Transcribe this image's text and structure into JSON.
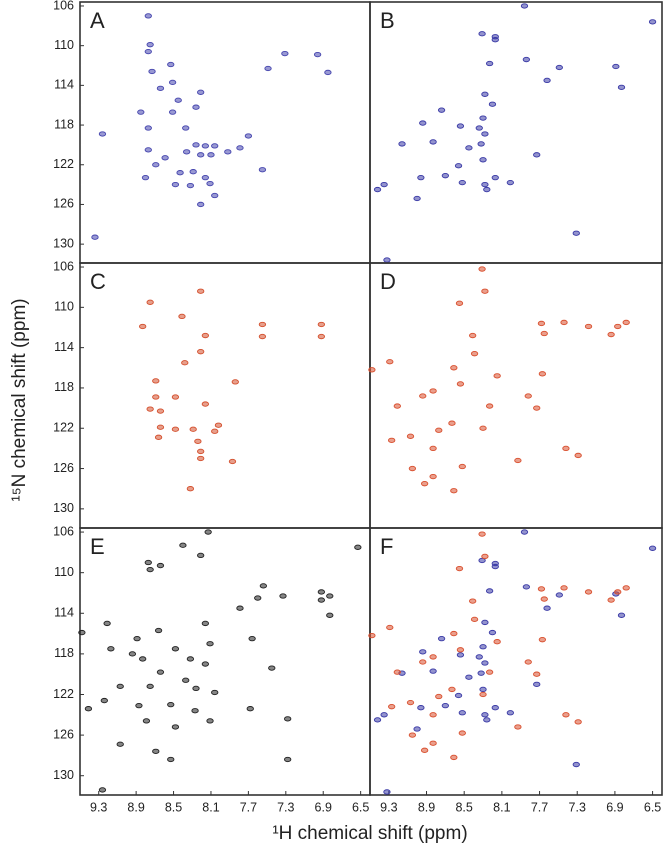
{
  "chart_data": {
    "type": "scatter",
    "xlabel": "¹H chemical shift (ppm)",
    "ylabel": "¹⁵N chemical shift (ppm)",
    "xlim": [
      9.5,
      6.4
    ],
    "ylim": [
      105.6,
      131.9
    ],
    "xticks": [
      9.3,
      8.9,
      8.5,
      8.1,
      7.7,
      7.3,
      6.9,
      6.5
    ],
    "yticks": [
      106,
      110,
      114,
      118,
      122,
      126,
      130
    ],
    "panels": [
      {
        "label": "A",
        "series": [
          {
            "color": "#4646ae",
            "x": [
              8.77,
              8.75,
              8.77,
              7.31,
              6.96,
              7.49,
              6.85,
              8.53,
              8.73,
              8.64,
              8.51,
              8.45,
              8.21,
              8.85,
              8.51,
              8.26,
              8.77,
              9.26,
              8.37,
              7.7,
              8.26,
              8.16,
              8.06,
              8.36,
              8.21,
              8.1,
              7.92,
              7.79,
              8.77,
              8.59,
              8.69,
              7.55,
              8.43,
              8.29,
              8.16,
              8.48,
              8.32,
              8.11,
              8.8,
              8.06,
              8.21,
              9.34
            ],
            "y": [
              107.0,
              109.9,
              110.6,
              110.8,
              110.9,
              112.3,
              112.7,
              111.9,
              112.6,
              114.3,
              113.7,
              115.5,
              114.7,
              116.7,
              116.7,
              116.2,
              118.3,
              118.9,
              118.3,
              119.1,
              120.0,
              120.1,
              120.1,
              120.7,
              121.0,
              121.0,
              120.7,
              120.3,
              120.5,
              121.3,
              122.0,
              122.5,
              122.8,
              122.7,
              123.3,
              124.0,
              124.1,
              123.9,
              123.3,
              125.1,
              126.0,
              129.3
            ]
          }
        ]
      },
      {
        "label": "B",
        "series": [
          {
            "color": "#3a3aa6",
            "x": [
              7.86,
              6.5,
              8.31,
              8.17,
              8.17,
              7.84,
              7.49,
              6.89,
              6.83,
              8.23,
              7.62,
              8.28,
              8.2,
              8.74,
              8.3,
              8.54,
              8.94,
              8.34,
              8.28,
              9.16,
              8.83,
              8.45,
              8.32,
              7.73,
              8.3,
              8.56,
              8.96,
              8.7,
              8.17,
              8.01,
              8.52,
              8.28,
              8.26,
              9.42,
              9.35,
              9.0,
              7.31,
              9.32
            ],
            "y": [
              106.0,
              107.6,
              108.8,
              109.1,
              109.4,
              111.4,
              112.2,
              112.1,
              114.2,
              111.8,
              113.5,
              114.9,
              115.9,
              116.5,
              117.3,
              118.1,
              117.8,
              118.3,
              118.9,
              119.9,
              119.7,
              120.3,
              119.9,
              121.0,
              121.5,
              122.1,
              123.3,
              123.1,
              123.3,
              123.8,
              123.8,
              124.0,
              124.5,
              124.5,
              124.0,
              125.4,
              128.9,
              131.6
            ]
          }
        ]
      },
      {
        "label": "C",
        "series": [
          {
            "color": "#d4502e",
            "x": [
              8.75,
              8.21,
              8.41,
              7.55,
              7.55,
              6.92,
              6.92,
              8.83,
              8.38,
              8.21,
              7.84,
              8.69,
              8.69,
              8.48,
              8.75,
              8.64,
              8.16,
              8.64,
              8.48,
              8.29,
              8.02,
              8.66,
              8.06,
              8.24,
              8.21,
              8.21,
              7.87,
              8.32,
              8.16
            ],
            "y": [
              109.5,
              108.4,
              110.9,
              111.7,
              112.9,
              111.7,
              112.9,
              111.9,
              115.5,
              114.4,
              117.4,
              117.3,
              118.9,
              118.9,
              120.1,
              120.3,
              119.6,
              121.9,
              122.1,
              122.1,
              121.7,
              122.9,
              122.3,
              123.3,
              124.3,
              125.0,
              125.3,
              128.0,
              112.8
            ]
          }
        ]
      },
      {
        "label": "D",
        "series": [
          {
            "color": "#d9502f",
            "x": [
              8.31,
              8.28,
              8.55,
              7.68,
              7.44,
              7.18,
              6.87,
              6.78,
              6.94,
              7.65,
              8.41,
              8.39,
              9.48,
              9.29,
              8.61,
              7.67,
              8.15,
              8.54,
              8.83,
              8.94,
              7.82,
              8.23,
              9.21,
              7.73,
              8.77,
              8.63,
              8.3,
              9.07,
              9.27,
              8.83,
              7.42,
              7.93,
              7.29,
              8.52,
              9.05,
              8.92,
              8.83,
              8.61
            ],
            "y": [
              106.2,
              108.4,
              109.6,
              111.6,
              111.5,
              111.9,
              111.9,
              111.5,
              112.7,
              112.6,
              112.8,
              114.6,
              116.2,
              115.4,
              116.0,
              116.6,
              116.8,
              117.6,
              118.3,
              118.8,
              118.8,
              119.8,
              119.8,
              120.0,
              122.2,
              121.5,
              122.0,
              122.8,
              123.2,
              124.0,
              124.0,
              125.2,
              124.7,
              125.8,
              126.0,
              127.5,
              126.8,
              128.2
            ]
          }
        ]
      },
      {
        "label": "E",
        "series": [
          {
            "color": "#222222",
            "x": [
              8.13,
              6.53,
              8.4,
              8.77,
              8.64,
              8.75,
              8.21,
              7.54,
              7.6,
              7.33,
              6.92,
              6.92,
              6.83,
              6.83,
              7.79,
              9.21,
              9.48,
              8.89,
              8.66,
              8.48,
              8.16,
              8.11,
              7.66,
              9.17,
              8.94,
              8.83,
              8.32,
              8.16,
              8.64,
              8.37,
              7.45,
              9.07,
              8.75,
              8.26,
              8.06,
              9.41,
              9.24,
              8.87,
              8.53,
              8.27,
              7.68,
              8.79,
              8.48,
              8.11,
              7.28,
              9.07,
              8.69,
              8.53,
              7.28,
              9.26
            ],
            "y": [
              106.0,
              107.5,
              107.3,
              109.0,
              109.3,
              109.7,
              108.3,
              111.3,
              112.5,
              112.3,
              111.9,
              112.7,
              112.3,
              114.2,
              113.5,
              115.0,
              115.9,
              116.5,
              115.7,
              117.5,
              115.0,
              117.0,
              116.5,
              117.5,
              118.0,
              118.5,
              118.5,
              119.0,
              119.8,
              120.6,
              119.4,
              121.2,
              121.2,
              121.4,
              121.8,
              123.4,
              122.6,
              123.1,
              123.0,
              123.6,
              123.4,
              124.6,
              125.2,
              124.6,
              124.4,
              126.9,
              127.6,
              128.4,
              128.4,
              131.4
            ]
          }
        ]
      },
      {
        "label": "F",
        "series": [
          {
            "color": "#3a3aa6",
            "x": [
              7.86,
              6.5,
              8.31,
              8.17,
              8.17,
              7.84,
              7.49,
              6.89,
              6.83,
              8.23,
              7.62,
              8.28,
              8.2,
              8.74,
              8.3,
              8.54,
              8.94,
              8.34,
              8.28,
              9.16,
              8.83,
              8.45,
              8.32,
              7.73,
              8.3,
              8.56,
              8.96,
              8.7,
              8.17,
              8.01,
              8.52,
              8.28,
              8.26,
              9.42,
              9.35,
              9.0,
              7.31,
              9.32
            ],
            "y": [
              106.0,
              107.6,
              108.8,
              109.1,
              109.4,
              111.4,
              112.2,
              112.1,
              114.2,
              111.8,
              113.5,
              114.9,
              115.9,
              116.5,
              117.3,
              118.1,
              117.8,
              118.3,
              118.9,
              119.9,
              119.7,
              120.3,
              119.9,
              121.0,
              121.5,
              122.1,
              123.3,
              123.1,
              123.3,
              123.8,
              123.8,
              124.0,
              124.5,
              124.5,
              124.0,
              125.4,
              128.9,
              131.6
            ]
          },
          {
            "color": "#d9502f",
            "x": [
              8.31,
              8.28,
              8.55,
              7.68,
              7.44,
              7.18,
              6.87,
              6.78,
              6.94,
              7.65,
              8.41,
              8.39,
              9.48,
              9.29,
              8.61,
              7.67,
              8.15,
              8.54,
              8.83,
              8.94,
              7.82,
              8.23,
              9.21,
              7.73,
              8.77,
              8.63,
              8.3,
              9.07,
              9.27,
              8.83,
              7.42,
              7.93,
              7.29,
              8.52,
              9.05,
              8.92,
              8.83,
              8.61
            ],
            "y": [
              106.2,
              108.4,
              109.6,
              111.6,
              111.5,
              111.9,
              111.9,
              111.5,
              112.7,
              112.6,
              112.8,
              114.6,
              116.2,
              115.4,
              116.0,
              116.6,
              116.8,
              117.6,
              118.3,
              118.8,
              118.8,
              119.8,
              119.8,
              120.0,
              122.2,
              121.5,
              122.0,
              122.8,
              123.2,
              124.0,
              124.0,
              125.2,
              124.7,
              125.8,
              126.0,
              127.5,
              126.8,
              128.2
            ]
          }
        ]
      }
    ]
  }
}
